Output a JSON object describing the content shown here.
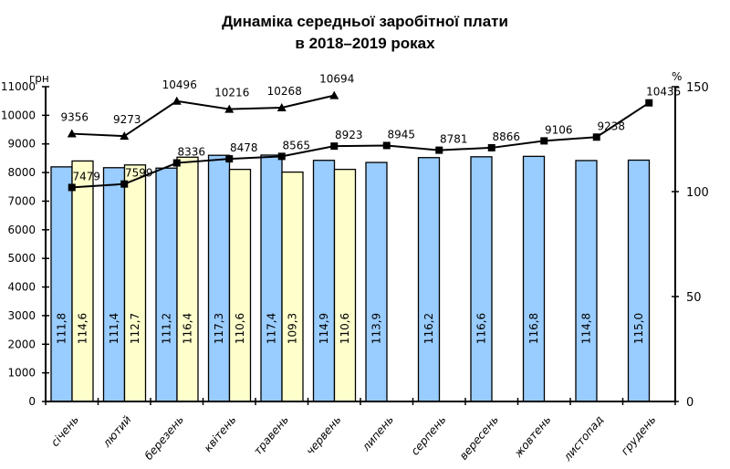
{
  "chart_data": {
    "type": "bar",
    "title": "Динаміка середньої заробітної плати",
    "subtitle": "в 2018–2019 роках",
    "y_left_unit": "грн",
    "y_right_unit": "%",
    "y_left_lim": [
      0,
      11000
    ],
    "y_left_ticks": [
      0,
      1000,
      2000,
      3000,
      4000,
      5000,
      6000,
      7000,
      8000,
      9000,
      10000,
      11000
    ],
    "y_right_lim": [
      0,
      150
    ],
    "y_right_ticks": [
      0,
      50,
      100,
      150
    ],
    "categories": [
      "січень",
      "лютий",
      "березень",
      "квітень",
      "травень",
      "червень",
      "липень",
      "серпень",
      "вересень",
      "жовтень",
      "листопад",
      "грудень"
    ],
    "bar_series": [
      {
        "axis": "right",
        "color": "#99ccff",
        "values": [
          111.8,
          111.4,
          111.2,
          117.3,
          117.4,
          114.9,
          113.9,
          116.2,
          116.6,
          116.8,
          114.8,
          115.0
        ],
        "labels": [
          "111,8",
          "111,4",
          "111,2",
          "117,3",
          "117,4",
          "114,9",
          "113,9",
          "116,2",
          "116,6",
          "116,8",
          "114,8",
          "115,0"
        ]
      },
      {
        "axis": "right",
        "color": "#ffffcc",
        "values": [
          114.6,
          112.7,
          116.4,
          110.6,
          109.3,
          110.6,
          null,
          null,
          null,
          null,
          null,
          null
        ],
        "labels": [
          "114,6",
          "112,7",
          "116,4",
          "110,6",
          "109,3",
          "110,6"
        ]
      }
    ],
    "line_series": [
      {
        "axis": "left",
        "marker": "square",
        "values": [
          7479,
          7599,
          8336,
          8478,
          8565,
          8923,
          8945,
          8781,
          8866,
          9106,
          9238,
          10435
        ]
      },
      {
        "axis": "left",
        "marker": "triangle",
        "values": [
          9356,
          9273,
          10496,
          10216,
          10268,
          10694,
          null,
          null,
          null,
          null,
          null,
          null
        ]
      }
    ],
    "grid": false,
    "legend": "none"
  }
}
